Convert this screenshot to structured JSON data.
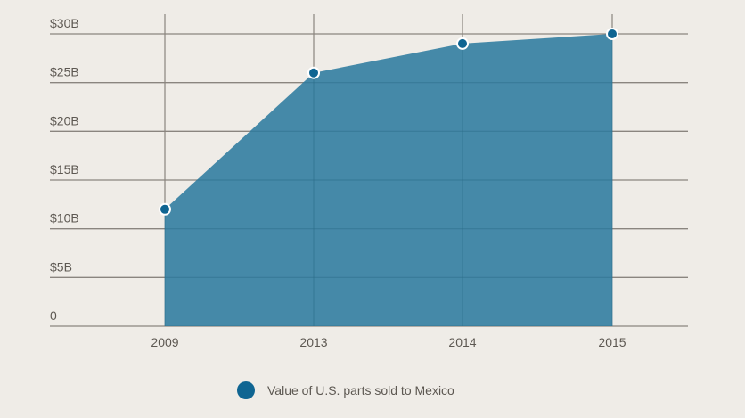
{
  "chart_data": {
    "type": "area",
    "title": "",
    "xlabel": "",
    "ylabel": "",
    "categories": [
      "2009",
      "2013",
      "2014",
      "2015"
    ],
    "series": [
      {
        "name": "Value of U.S. parts sold to Mexico",
        "values": [
          12,
          26,
          29,
          30
        ],
        "unit": "billion USD"
      }
    ],
    "ylim": [
      0,
      30
    ],
    "yticks": [
      0,
      5,
      10,
      15,
      20,
      25,
      30
    ],
    "ytick_labels": [
      "0",
      "$5B",
      "$10B",
      "$15B",
      "$20B",
      "$25B",
      "$30B"
    ],
    "grid": true,
    "legend_position": "bottom",
    "colors": {
      "area_fill": "#4589a8",
      "marker": "#0f6592",
      "marker_stroke": "#ffffff",
      "gridline": "#8a857f",
      "background": "#efece7",
      "text": "#5d5852"
    }
  },
  "legend": {
    "label": "Value of U.S. parts sold to Mexico"
  }
}
